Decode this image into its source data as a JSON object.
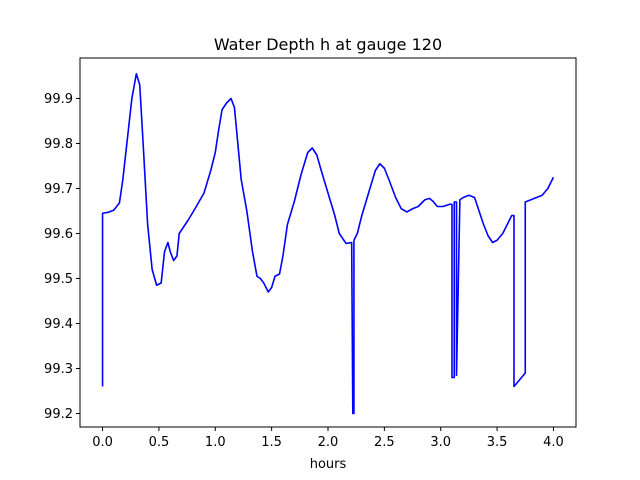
{
  "chart_data": {
    "type": "line",
    "title": "Water Depth h at gauge 120",
    "xlabel": "hours",
    "ylabel": "",
    "xlim": [
      -0.2,
      4.2
    ],
    "ylim": [
      99.17,
      99.99
    ],
    "xticks": [
      0.0,
      0.5,
      1.0,
      1.5,
      2.0,
      2.5,
      3.0,
      3.5,
      4.0
    ],
    "xtick_labels": [
      "0.0",
      "0.5",
      "1.0",
      "1.5",
      "2.0",
      "2.5",
      "3.0",
      "3.5",
      "4.0"
    ],
    "yticks": [
      99.2,
      99.3,
      99.4,
      99.5,
      99.6,
      99.7,
      99.8,
      99.9
    ],
    "ytick_labels": [
      "99.2",
      "99.3",
      "99.4",
      "99.5",
      "99.6",
      "99.7",
      "99.8",
      "99.9"
    ],
    "grid": false,
    "legend": "none",
    "series": [
      {
        "color": "#0000ff",
        "x": [
          0.0,
          0.0,
          0.05,
          0.1,
          0.15,
          0.18,
          0.22,
          0.26,
          0.3,
          0.33,
          0.36,
          0.4,
          0.44,
          0.48,
          0.52,
          0.55,
          0.58,
          0.6,
          0.63,
          0.66,
          0.68,
          0.72,
          0.76,
          0.82,
          0.9,
          0.96,
          1.0,
          1.03,
          1.06,
          1.1,
          1.14,
          1.17,
          1.2,
          1.23,
          1.28,
          1.33,
          1.37,
          1.4,
          1.43,
          1.47,
          1.5,
          1.53,
          1.57,
          1.6,
          1.64,
          1.7,
          1.76,
          1.82,
          1.86,
          1.9,
          1.94,
          2.0,
          2.06,
          2.1,
          2.16,
          2.21,
          2.22,
          2.23,
          2.23,
          2.26,
          2.3,
          2.36,
          2.42,
          2.46,
          2.5,
          2.54,
          2.6,
          2.65,
          2.7,
          2.75,
          2.8,
          2.86,
          2.9,
          2.93,
          2.97,
          3.02,
          3.08,
          3.1,
          3.1,
          3.12,
          3.12,
          3.14,
          3.14,
          3.17,
          3.2,
          3.25,
          3.3,
          3.34,
          3.38,
          3.42,
          3.46,
          3.5,
          3.55,
          3.6,
          3.63,
          3.65,
          3.65,
          3.75,
          3.75,
          3.8,
          3.85,
          3.9,
          3.95,
          4.0
        ],
        "y": [
          99.26,
          99.645,
          99.647,
          99.652,
          99.668,
          99.72,
          99.81,
          99.9,
          99.955,
          99.93,
          99.8,
          99.62,
          99.52,
          99.485,
          99.49,
          99.56,
          99.58,
          99.56,
          99.54,
          99.55,
          99.6,
          99.615,
          99.63,
          99.655,
          99.69,
          99.74,
          99.78,
          99.83,
          99.875,
          99.89,
          99.9,
          99.88,
          99.8,
          99.72,
          99.65,
          99.56,
          99.505,
          99.5,
          99.49,
          99.47,
          99.48,
          99.505,
          99.51,
          99.55,
          99.62,
          99.67,
          99.73,
          99.78,
          99.79,
          99.775,
          99.74,
          99.69,
          99.64,
          99.6,
          99.578,
          99.58,
          99.2,
          99.2,
          99.585,
          99.6,
          99.64,
          99.69,
          99.74,
          99.755,
          99.745,
          99.72,
          99.68,
          99.655,
          99.648,
          99.655,
          99.66,
          99.675,
          99.678,
          99.672,
          99.66,
          99.66,
          99.665,
          99.665,
          99.28,
          99.28,
          99.67,
          99.67,
          99.285,
          99.675,
          99.68,
          99.685,
          99.68,
          99.65,
          99.62,
          99.595,
          99.58,
          99.585,
          99.6,
          99.625,
          99.64,
          99.64,
          99.26,
          99.29,
          99.67,
          99.675,
          99.68,
          99.685,
          99.7,
          99.725
        ]
      }
    ]
  }
}
